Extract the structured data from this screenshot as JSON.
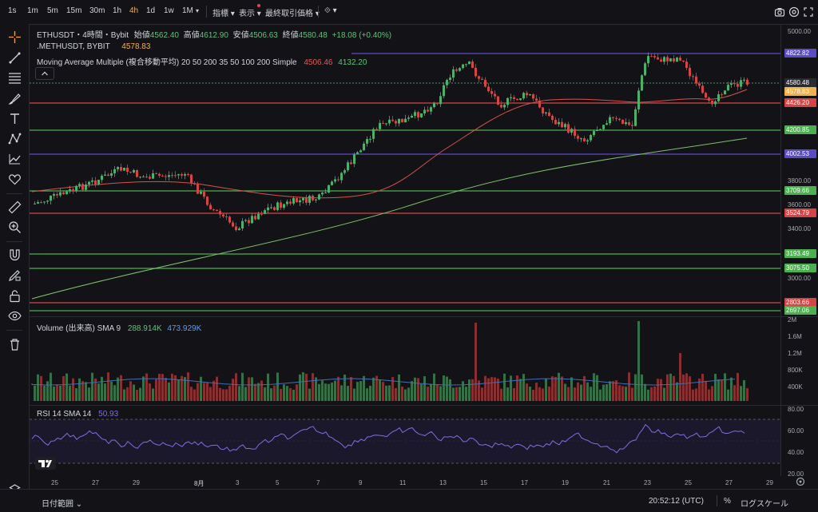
{
  "toolbar": {
    "intervals": [
      "1s",
      "1m",
      "5m",
      "15m",
      "30m",
      "1h",
      "4h",
      "1d",
      "1w",
      "1M"
    ],
    "active_interval": "4h",
    "indicators_label": "指標",
    "view_label": "表示",
    "last_price_label": "最終取引価格"
  },
  "legend": {
    "symbol": "ETHUSDT・4時間・Bybit",
    "open_label": "始値",
    "open": "4562.40",
    "high_label": "高値",
    "high": "4612.90",
    "low_label": "安値",
    "low": "4506.63",
    "close_label": "終値",
    "close": "4580.48",
    "change": "+18.08 (+0.40%)",
    "compare_symbol": ".METHUSDT, BYBIT",
    "compare_value": "4578.83",
    "ma_label": "Moving Average Multiple (複合移動平均) 20 50 200 35 50 100 200 Simple",
    "ma_val1": "4506.46",
    "ma_val2": "4132.20"
  },
  "volume": {
    "label": "Volume (出来高) SMA 9",
    "val1": "288.914K",
    "val2": "473.929K",
    "axis": [
      "2M",
      "1.6M",
      "1.2M",
      "800K",
      "400K"
    ]
  },
  "rsi": {
    "label": "RSI 14 SMA 14",
    "value": "50.93",
    "axis": [
      "80.00",
      "60.00",
      "40.00",
      "20.00"
    ]
  },
  "price_axis": [
    "5000.00",
    "3800.00",
    "3600.00",
    "3400.00",
    "3000.00"
  ],
  "price_tags": [
    {
      "value": "4822.82",
      "color": "#5b4bc4",
      "y": 67
    },
    {
      "value": "4580.48",
      "color": "#2a2b30",
      "y": 104
    },
    {
      "value": "4578.83",
      "color": "#f0b24a",
      "y": 115
    },
    {
      "value": "4426.20",
      "color": "#d64545",
      "y": 129
    },
    {
      "value": "4200.85",
      "color": "#4caf50",
      "y": 163
    },
    {
      "value": "4002.53",
      "color": "#5b4bc4",
      "y": 193
    },
    {
      "value": "3709.66",
      "color": "#4caf50",
      "y": 239
    },
    {
      "value": "3524.79",
      "color": "#d64545",
      "y": 267
    },
    {
      "value": "3193.49",
      "color": "#4caf50",
      "y": 318
    },
    {
      "value": "3075.50",
      "color": "#4caf50",
      "y": 336
    },
    {
      "value": "2803.66",
      "color": "#d64545",
      "y": 379
    },
    {
      "value": "2697.06",
      "color": "#4caf50",
      "y": 389
    }
  ],
  "time_axis": [
    "25",
    "27",
    "29",
    "8月",
    "3",
    "5",
    "7",
    "9",
    "11",
    "13",
    "15",
    "17",
    "19",
    "21",
    "23",
    "25",
    "27",
    "29"
  ],
  "bottom": {
    "date_range": "日付範囲",
    "time": "20:52:12 (UTC)",
    "percent": "%",
    "log_scale": "ログスケール"
  },
  "colors": {
    "up": "#4caf6a",
    "down": "#d64545",
    "purple_line": "#5b4bc4",
    "ma_short": "#d4524a",
    "ma_long": "#7fbf6a"
  }
}
